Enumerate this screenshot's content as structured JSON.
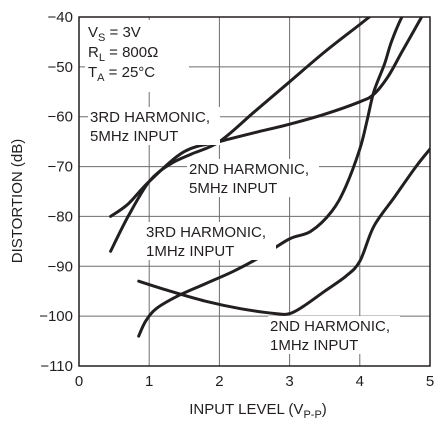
{
  "chart_data": {
    "type": "line",
    "xlabel": "INPUT LEVEL (V",
    "xlabel_sub": "P-P",
    "xlabel_close": ")",
    "ylabel": "DISTORTION (dB)",
    "xlim": [
      0,
      5
    ],
    "ylim": [
      -110,
      -40
    ],
    "x_ticks": [
      0,
      1,
      2,
      3,
      4,
      5
    ],
    "y_ticks": [
      -110,
      -100,
      -90,
      -80,
      -70,
      -60,
      -50,
      -40
    ],
    "grid": true,
    "conditions": [
      {
        "main": "V",
        "sub": "S",
        "rest": " = 3V"
      },
      {
        "main": "R",
        "sub": "L",
        "rest": " = 800Ω"
      },
      {
        "main": "T",
        "sub": "A",
        "rest": " = 25°C"
      }
    ],
    "annotations": [
      {
        "lines": [
          "3RD HARMONIC,",
          "5MHz INPUT"
        ]
      },
      {
        "lines": [
          "2ND HARMONIC,",
          "5MHz INPUT"
        ]
      },
      {
        "lines": [
          "3RD HARMONIC,",
          "1MHz INPUT"
        ]
      },
      {
        "lines": [
          "2ND HARMONIC,",
          "1MHz INPUT"
        ]
      }
    ],
    "series": [
      {
        "color": "#231f20",
        "x": [
          0.45,
          0.7,
          1.0,
          1.5,
          2.0,
          2.5,
          3.0,
          3.5,
          4.0,
          4.2,
          4.4,
          4.6,
          4.8,
          5.0
        ],
        "y": [
          -80,
          -77.5,
          -73,
          -67,
          -65,
          -63.2,
          -61.5,
          -59.5,
          -57,
          -55.5,
          -52,
          -47,
          -42,
          -37
        ]
      },
      {
        "color": "#231f20",
        "x": [
          0.45,
          0.7,
          1.0,
          1.3,
          1.6,
          2.0,
          2.5,
          3.0,
          3.5,
          4.0,
          4.5,
          4.8
        ],
        "y": [
          -87,
          -80,
          -73,
          -69.5,
          -67.5,
          -65,
          -59,
          -53,
          -47,
          -41.5,
          -36,
          -33
        ]
      },
      {
        "color": "#231f20",
        "x": [
          0.85,
          0.95,
          1.1,
          1.4,
          1.8,
          2.2,
          2.6,
          3.0,
          3.3,
          3.6,
          3.8,
          4.0,
          4.1,
          4.2,
          4.35,
          4.45,
          4.6,
          4.7
        ],
        "y": [
          -104,
          -101,
          -98.5,
          -96,
          -93.5,
          -91,
          -88,
          -84.5,
          -83,
          -79,
          -74,
          -66.5,
          -61,
          -55,
          -49.5,
          -45,
          -40,
          -38
        ]
      },
      {
        "color": "#231f20",
        "x": [
          0.85,
          1.3,
          1.8,
          2.3,
          2.8,
          3.0,
          3.2,
          3.5,
          3.8,
          4.0,
          4.2,
          4.5,
          4.8,
          5.0
        ],
        "y": [
          -93,
          -95,
          -97,
          -98.5,
          -99.5,
          -99.5,
          -98,
          -95,
          -92,
          -89,
          -82,
          -76,
          -70,
          -66.5
        ]
      }
    ]
  }
}
